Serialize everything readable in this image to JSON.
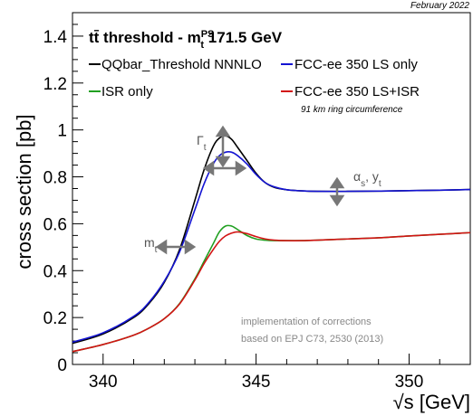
{
  "header": {
    "date": "February 2022",
    "note": "91 km ring circumference",
    "impl_line1": "implementation of corrections",
    "impl_line2": "based on EPJ C73, 2530 (2013)"
  },
  "annotations": {
    "gamma": "Γ",
    "gamma_sub": "t",
    "alpha": "α",
    "alpha_sub": "s",
    "y": ", y",
    "y_sub": "t",
    "m": "m",
    "m_sub": "t"
  },
  "chart_data": {
    "type": "line",
    "title_main": "tt̄ threshold - m",
    "title_sup": "PS",
    "title_sub": "t",
    "title_value": " 171.5 GeV",
    "xlabel": "√s [GeV]",
    "ylabel": "cross section [pb]",
    "xlim": [
      339,
      352
    ],
    "ylim": [
      0,
      1.5
    ],
    "x_ticks": [
      340,
      345,
      350
    ],
    "y_ticks": [
      0,
      0.2,
      0.4,
      0.6,
      0.8,
      1,
      1.2,
      1.4
    ],
    "grid": false,
    "legend_position": "top",
    "colors": {
      "QQbar_Threshold NNNLO": "#000000",
      "FCC-ee 350 LS only": "#1414d2",
      "ISR only": "#21a021",
      "FCC-ee 350 LS+ISR": "#d21414"
    },
    "series": [
      {
        "name": "QQbar_Threshold NNNLO",
        "x": [
          339,
          340,
          341,
          341.5,
          342,
          342.5,
          343,
          343.3,
          343.6,
          343.8,
          344,
          344.2,
          344.4,
          344.7,
          345,
          345.3,
          345.6,
          346,
          346.5,
          347,
          348,
          349,
          350,
          351,
          352
        ],
        "y": [
          0.09,
          0.13,
          0.2,
          0.26,
          0.35,
          0.49,
          0.7,
          0.83,
          0.93,
          0.965,
          0.975,
          0.96,
          0.925,
          0.87,
          0.815,
          0.775,
          0.755,
          0.745,
          0.74,
          0.738,
          0.738,
          0.739,
          0.741,
          0.743,
          0.746
        ]
      },
      {
        "name": "FCC-ee 350 LS only",
        "x": [
          339,
          340,
          341,
          341.5,
          342,
          342.5,
          343,
          343.3,
          343.6,
          343.8,
          344,
          344.2,
          344.4,
          344.7,
          345,
          345.3,
          345.6,
          346,
          346.5,
          347,
          348,
          349,
          350,
          351,
          352
        ],
        "y": [
          0.095,
          0.135,
          0.205,
          0.265,
          0.355,
          0.48,
          0.66,
          0.77,
          0.855,
          0.89,
          0.905,
          0.905,
          0.89,
          0.855,
          0.81,
          0.775,
          0.757,
          0.745,
          0.74,
          0.738,
          0.738,
          0.739,
          0.741,
          0.743,
          0.746
        ]
      },
      {
        "name": "ISR only",
        "x": [
          339,
          340,
          341,
          341.5,
          342,
          342.5,
          343,
          343.3,
          343.6,
          343.8,
          344,
          344.2,
          344.4,
          344.7,
          345,
          345.3,
          345.6,
          346,
          346.5,
          347,
          348,
          349,
          350,
          351,
          352
        ],
        "y": [
          0.055,
          0.085,
          0.125,
          0.155,
          0.195,
          0.26,
          0.365,
          0.44,
          0.515,
          0.565,
          0.59,
          0.59,
          0.575,
          0.55,
          0.535,
          0.53,
          0.528,
          0.528,
          0.528,
          0.53,
          0.535,
          0.54,
          0.548,
          0.555,
          0.562
        ]
      },
      {
        "name": "FCC-ee 350 LS+ISR",
        "x": [
          339,
          340,
          341,
          341.5,
          342,
          342.5,
          343,
          343.3,
          343.6,
          343.8,
          344,
          344.2,
          344.4,
          344.7,
          345,
          345.3,
          345.6,
          346,
          346.5,
          347,
          348,
          349,
          350,
          351,
          352
        ],
        "y": [
          0.055,
          0.085,
          0.125,
          0.155,
          0.195,
          0.258,
          0.36,
          0.43,
          0.49,
          0.525,
          0.548,
          0.56,
          0.565,
          0.558,
          0.545,
          0.535,
          0.53,
          0.528,
          0.528,
          0.53,
          0.535,
          0.54,
          0.548,
          0.555,
          0.562
        ]
      }
    ]
  }
}
